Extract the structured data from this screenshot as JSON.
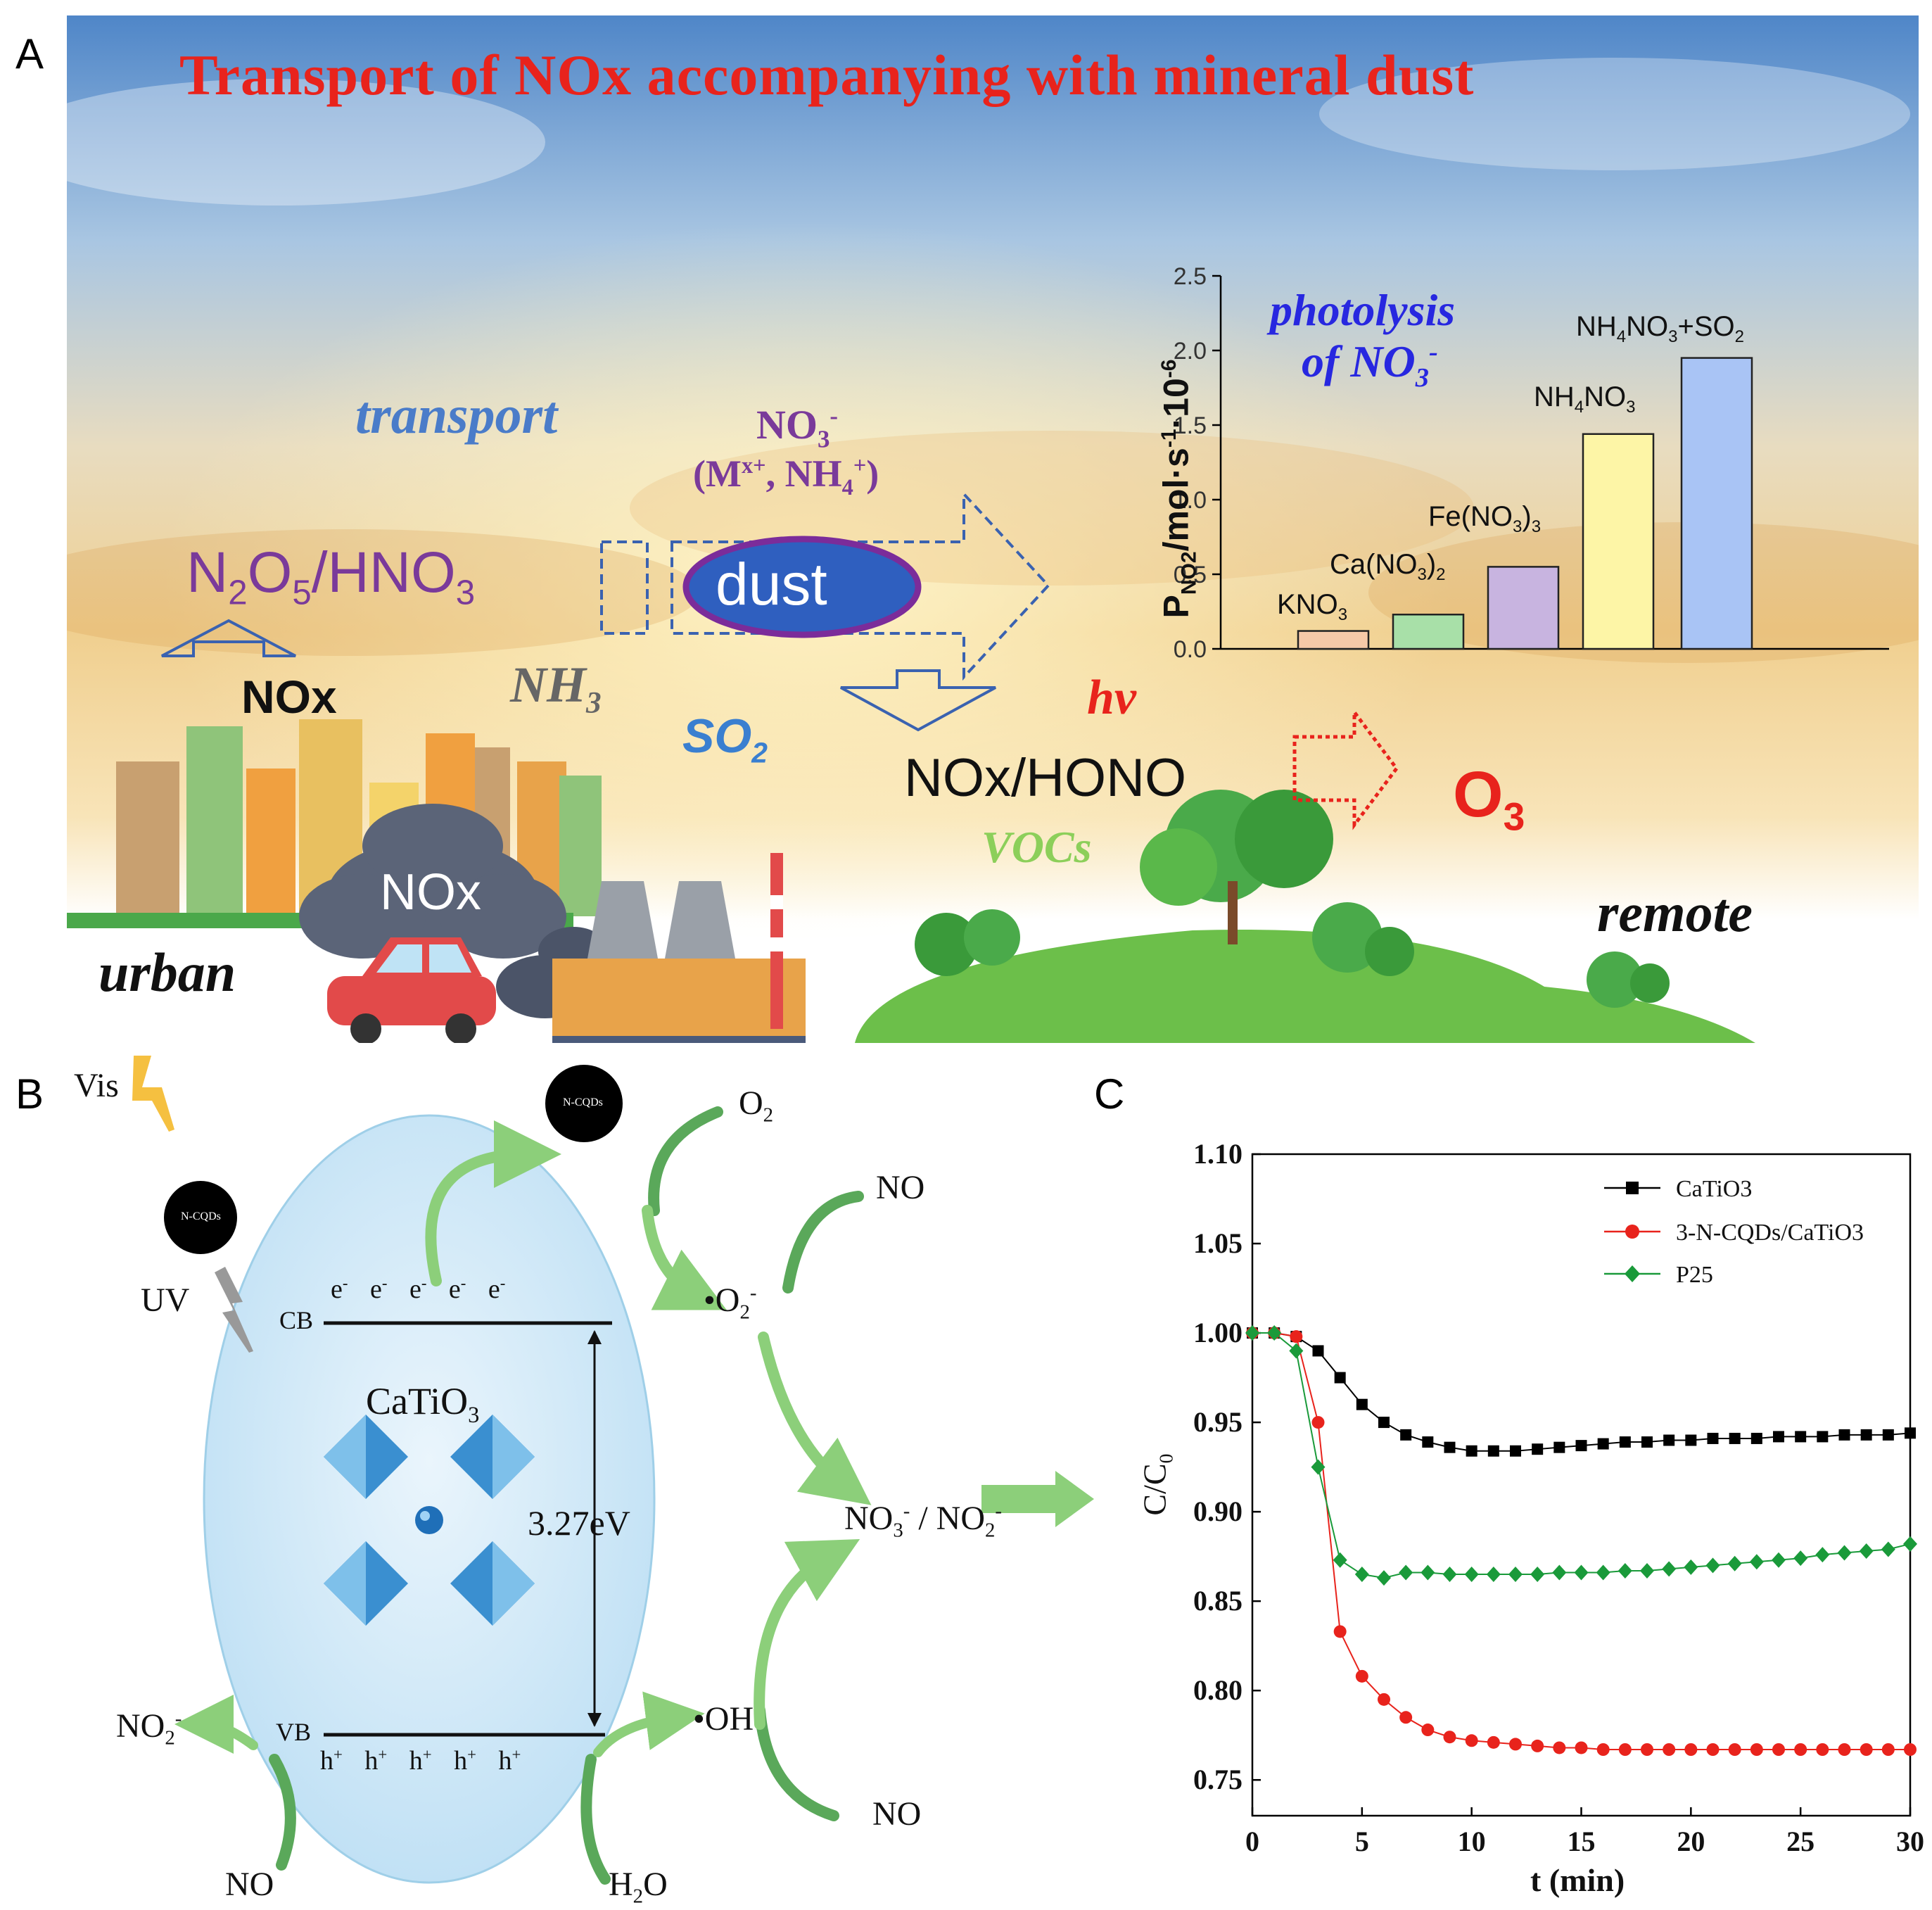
{
  "panel_labels": {
    "a": "A",
    "b": "B",
    "c": "C"
  },
  "panelA": {
    "title": "Transport of NOx accompanying with mineral dust",
    "transport": "transport",
    "no3_line1": "NO3-",
    "no3_line2": "(Mx+, NH4+)",
    "n2o5_hno3": "N2O5/HNO3",
    "dust": "dust",
    "nox_arrow": "NOx",
    "nh3": "NH3",
    "so2": "SO2",
    "hv": "hv",
    "nox_hono": "NOx/HONO",
    "o3": "O3",
    "vocs": "VOCs",
    "nox_cloud": "NOx",
    "urban": "urban",
    "remote": "remote",
    "inset_title_1": "photolysis",
    "inset_title_2": "of NO3-",
    "colors": {
      "title": "#e8231c",
      "transport": "#4a7cc9",
      "purple": "#7a3a9a",
      "dust_fill": "#2f5fbf",
      "dust_border": "#7b2c9a",
      "o3": "#e8231c",
      "vocs": "#8ccf5a",
      "so2": "#3a7fd0"
    }
  },
  "chart_data": [
    {
      "type": "bar",
      "title": "photolysis of NO3-",
      "ylabel": "PNO2/mol·s-1·10-6",
      "xlabel": "",
      "categories": [
        "KNO3",
        "Ca(NO3)2",
        "Fe(NO3)3",
        "NH4NO3",
        "NH4NO3+SO2"
      ],
      "values": [
        0.12,
        0.23,
        0.55,
        1.44,
        1.95
      ],
      "colors": [
        "#f6c9a8",
        "#a8e0a8",
        "#c8b4e0",
        "#fdf5a6",
        "#a9c4f5"
      ],
      "ylim": [
        0,
        2.5
      ],
      "yticks": [
        "0.0",
        "0.5",
        "1.0",
        "1.5",
        "2.0",
        "2.5"
      ]
    },
    {
      "type": "line",
      "xlabel": "t (min)",
      "ylabel": "C/C0",
      "xlim": [
        0,
        30
      ],
      "ylim": [
        0.73,
        1.1
      ],
      "xticks": [
        "0",
        "5",
        "10",
        "15",
        "20",
        "25",
        "30"
      ],
      "yticks": [
        "0.75",
        "0.80",
        "0.85",
        "0.90",
        "0.95",
        "1.00",
        "1.05",
        "1.10"
      ],
      "legend_position": "top-right",
      "series": [
        {
          "name": "CaTiO3",
          "color": "#000000",
          "marker": "square",
          "x": [
            0,
            1,
            2,
            3,
            4,
            5,
            6,
            7,
            8,
            9,
            10,
            11,
            12,
            13,
            14,
            15,
            16,
            17,
            18,
            19,
            20,
            21,
            22,
            23,
            24,
            25,
            26,
            27,
            28,
            29,
            30
          ],
          "y": [
            1.0,
            1.0,
            0.998,
            0.99,
            0.975,
            0.96,
            0.95,
            0.943,
            0.939,
            0.936,
            0.934,
            0.934,
            0.934,
            0.935,
            0.936,
            0.937,
            0.938,
            0.939,
            0.939,
            0.94,
            0.94,
            0.941,
            0.941,
            0.941,
            0.942,
            0.942,
            0.942,
            0.943,
            0.943,
            0.943,
            0.944
          ]
        },
        {
          "name": "3-N-CQDs/CaTiO3",
          "color": "#e8231c",
          "marker": "circle",
          "x": [
            0,
            1,
            2,
            3,
            4,
            5,
            6,
            7,
            8,
            9,
            10,
            11,
            12,
            13,
            14,
            15,
            16,
            17,
            18,
            19,
            20,
            21,
            22,
            23,
            24,
            25,
            26,
            27,
            28,
            29,
            30
          ],
          "y": [
            1.0,
            1.0,
            0.998,
            0.95,
            0.833,
            0.808,
            0.795,
            0.785,
            0.778,
            0.774,
            0.772,
            0.771,
            0.77,
            0.769,
            0.768,
            0.768,
            0.767,
            0.767,
            0.767,
            0.767,
            0.767,
            0.767,
            0.767,
            0.767,
            0.767,
            0.767,
            0.767,
            0.767,
            0.767,
            0.767,
            0.767
          ]
        },
        {
          "name": "P25",
          "color": "#1a9a3a",
          "marker": "diamond",
          "x": [
            0,
            1,
            2,
            3,
            4,
            5,
            6,
            7,
            8,
            9,
            10,
            11,
            12,
            13,
            14,
            15,
            16,
            17,
            18,
            19,
            20,
            21,
            22,
            23,
            24,
            25,
            26,
            27,
            28,
            29,
            30
          ],
          "y": [
            1.0,
            1.0,
            0.99,
            0.925,
            0.873,
            0.865,
            0.863,
            0.866,
            0.866,
            0.865,
            0.865,
            0.865,
            0.865,
            0.865,
            0.866,
            0.866,
            0.866,
            0.867,
            0.867,
            0.868,
            0.869,
            0.87,
            0.871,
            0.872,
            0.873,
            0.874,
            0.876,
            0.877,
            0.878,
            0.879,
            0.882
          ]
        }
      ]
    }
  ],
  "panelB": {
    "vis": "Vis",
    "uv": "UV",
    "ncqds": "N-CQDs",
    "o2": "O2",
    "no_top": "NO",
    "o2_radical": "•O2-",
    "cb": "CB",
    "vb": "VB",
    "electron": "e-",
    "hole": "h+",
    "catio3": "CaTiO3",
    "gap": "3.27eV",
    "no3_no2": "NO3- / NO2-",
    "oh": "•OH",
    "no_bottom": "NO",
    "no2_minus": "NO2-",
    "no_left": "NO",
    "h2o": "H2O"
  }
}
